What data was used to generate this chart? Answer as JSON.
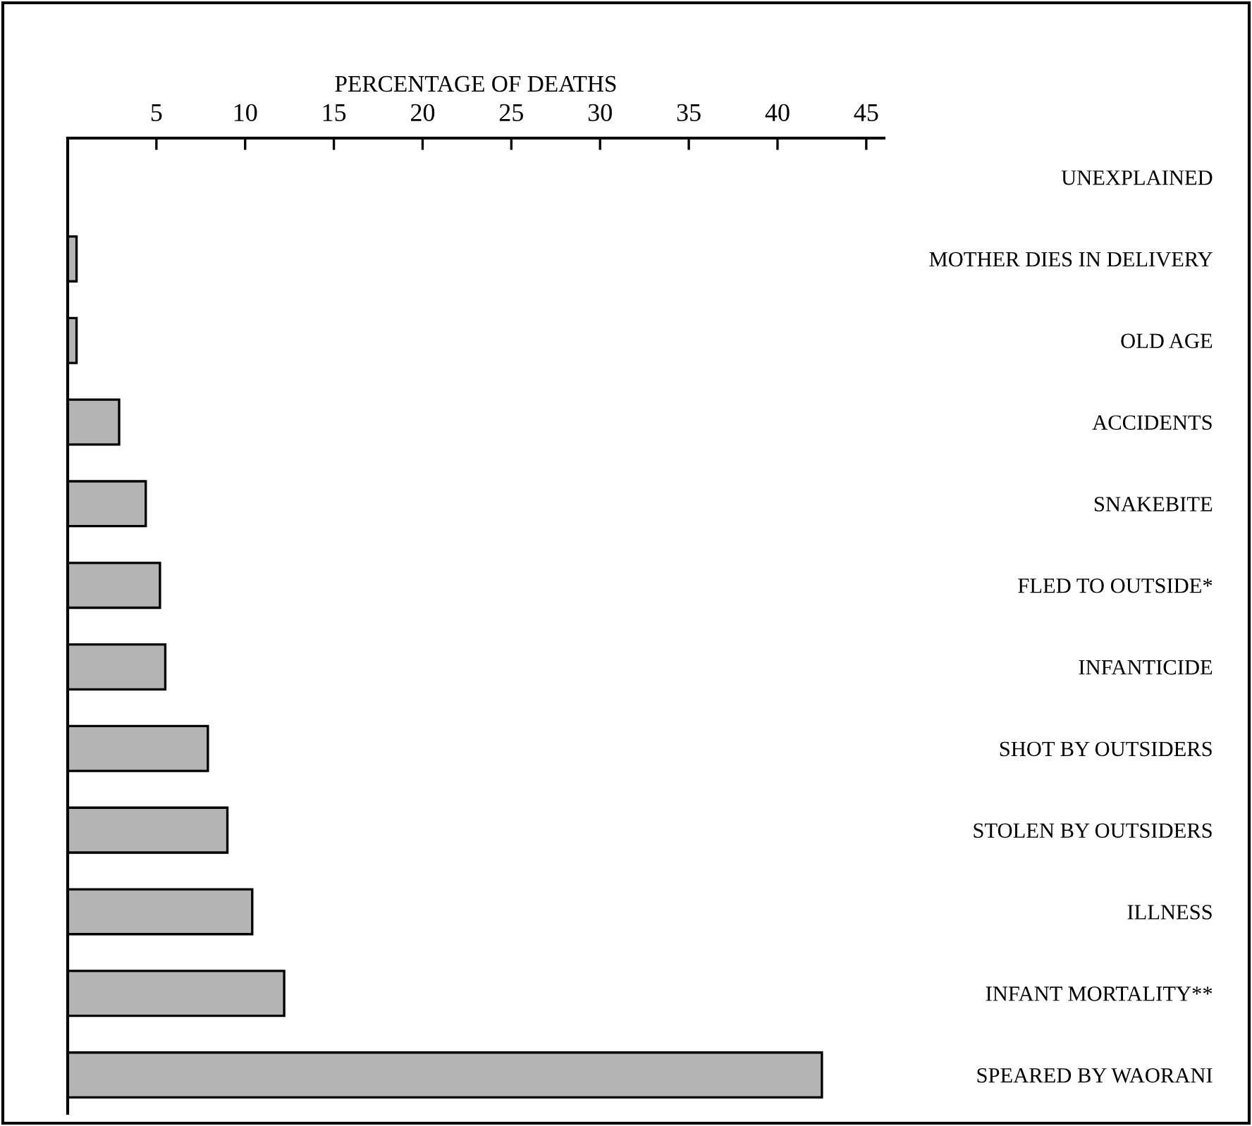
{
  "chart_data": {
    "type": "bar",
    "orientation": "horizontal",
    "xlabel": "PERCENTAGE OF DEATHS",
    "categories": [
      "UNEXPLAINED",
      "MOTHER DIES IN DELIVERY",
      "OLD AGE",
      "ACCIDENTS",
      "SNAKEBITE",
      "FLED TO OUTSIDE*",
      "INFANTICIDE",
      "SHOT BY OUTSIDERS",
      "STOLEN BY OUTSIDERS",
      "ILLNESS",
      "INFANT MORTALITY**",
      "SPEARED BY WAORANI"
    ],
    "values": [
      null,
      0.5,
      0.5,
      2.9,
      4.4,
      5.2,
      5.5,
      7.9,
      9.0,
      10.4,
      12.2,
      42.5
    ],
    "color": "#b4b4b4",
    "xlim": [
      0,
      46
    ],
    "xticks": [
      5,
      10,
      15,
      20,
      25,
      30,
      35,
      40,
      45
    ],
    "grid": false
  }
}
